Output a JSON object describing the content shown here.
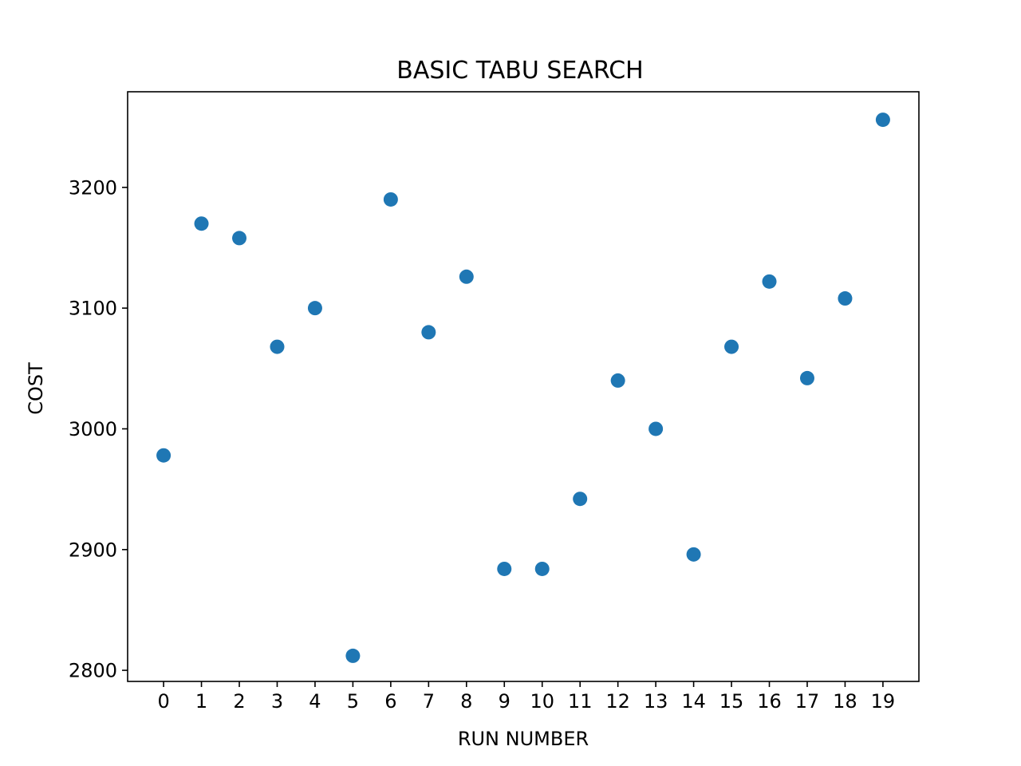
{
  "chart_data": {
    "type": "scatter",
    "title": "BASIC TABU SEARCH",
    "xlabel": "RUN NUMBER",
    "ylabel": "COST",
    "x": [
      0,
      1,
      2,
      3,
      4,
      5,
      6,
      7,
      8,
      9,
      10,
      11,
      12,
      13,
      14,
      15,
      16,
      17,
      18,
      19
    ],
    "y": [
      2978,
      3170,
      3158,
      3068,
      3100,
      2812,
      3190,
      3080,
      3126,
      2884,
      2884,
      2942,
      3040,
      3000,
      2896,
      3068,
      3122,
      3042,
      3108,
      3256
    ],
    "xticks": [
      "0",
      "1",
      "2",
      "3",
      "4",
      "5",
      "6",
      "7",
      "8",
      "9",
      "10",
      "11",
      "12",
      "13",
      "14",
      "15",
      "16",
      "17",
      "18",
      "19"
    ],
    "yticks": [
      "2800",
      "2900",
      "3000",
      "3100",
      "3200"
    ],
    "xlim": [
      -0.95,
      19.95
    ],
    "ylim": [
      2790.8,
      3279.2
    ],
    "grid": false,
    "legend": "none",
    "marker_color": "#1f77b4"
  }
}
